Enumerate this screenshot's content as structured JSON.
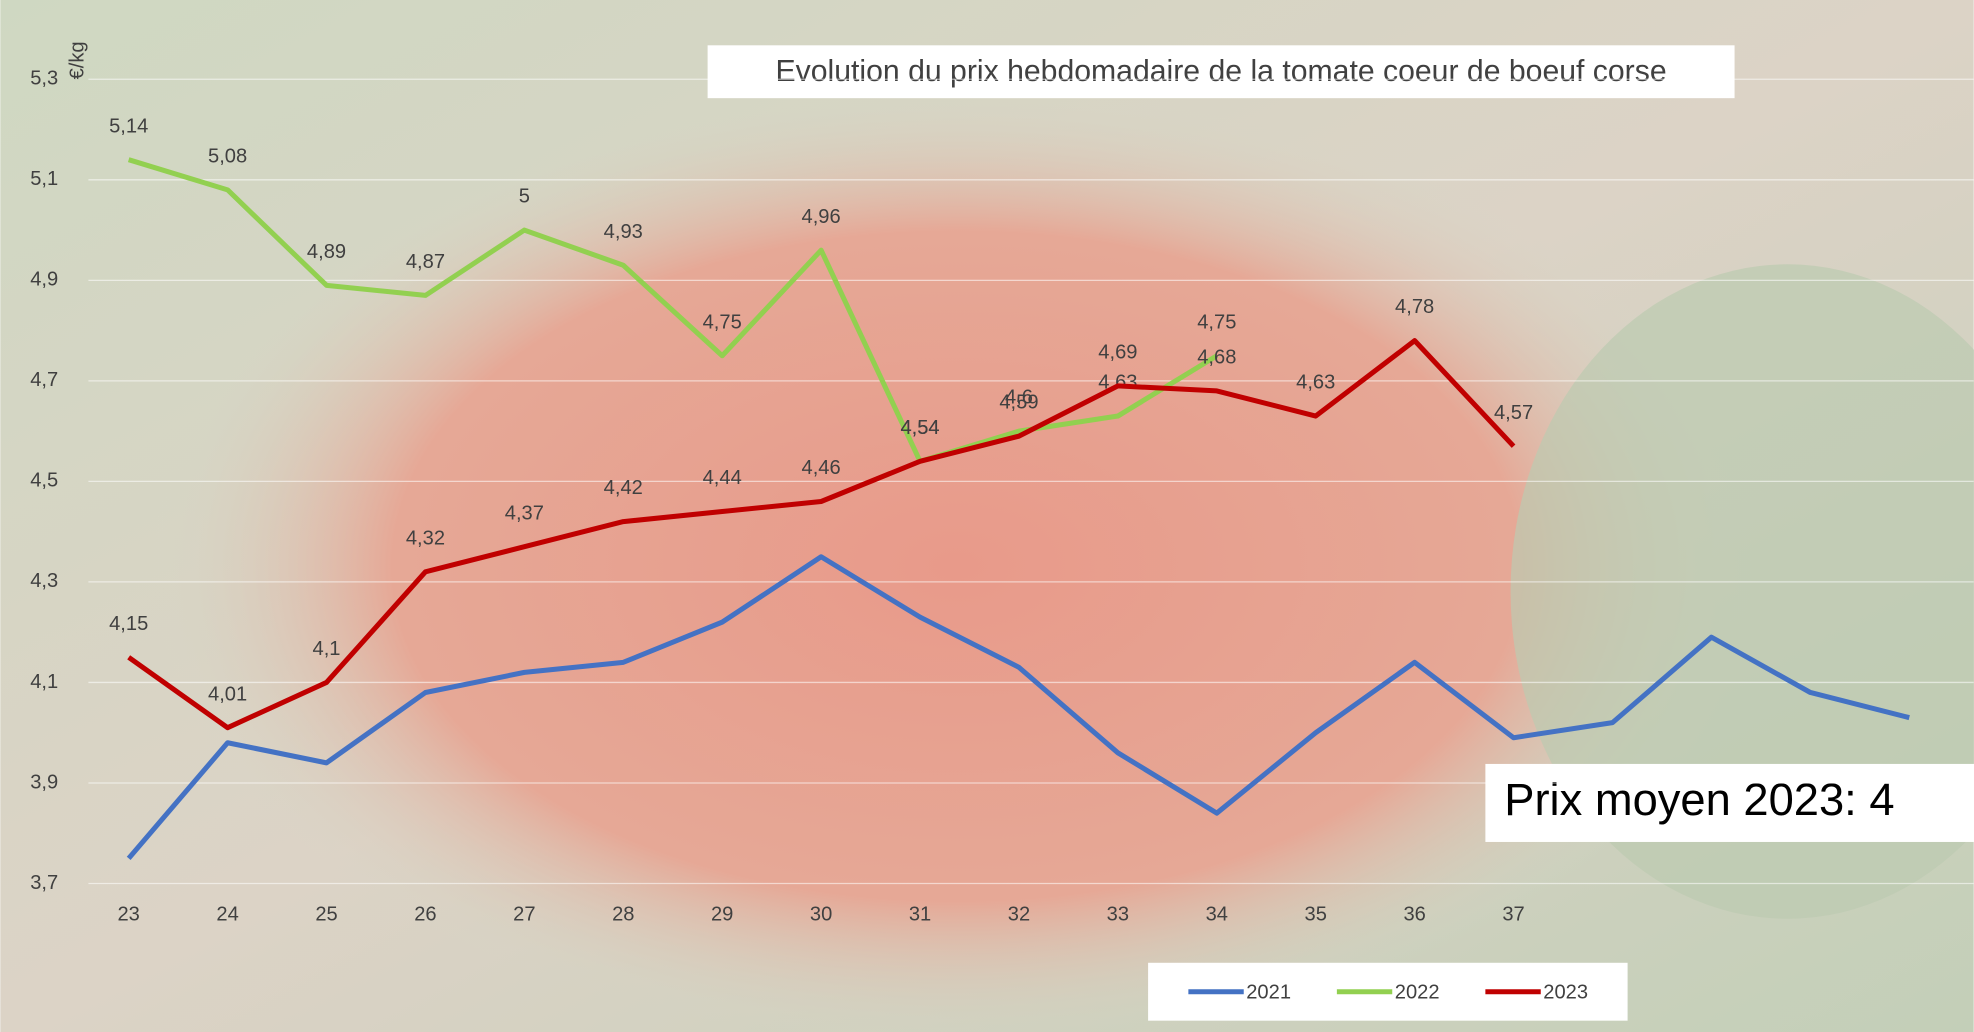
{
  "chart_data": {
    "type": "line",
    "title": "Evolution du prix hebdomadaire de la tomate coeur de boeuf corse",
    "y_label": "€/kg",
    "annotation": "Prix moyen 2023: 4",
    "categories": [
      "23",
      "24",
      "25",
      "26",
      "27",
      "28",
      "29",
      "30",
      "31",
      "32",
      "33",
      "34",
      "35",
      "36",
      "37",
      null,
      null,
      null,
      null
    ],
    "series": [
      {
        "name": "2021",
        "color": "#4472c4",
        "values": [
          3.75,
          3.98,
          3.94,
          4.08,
          4.12,
          4.14,
          4.22,
          4.35,
          4.23,
          4.13,
          3.96,
          3.84,
          4.0,
          4.14,
          3.99,
          4.02,
          4.19,
          4.08,
          4.03
        ]
      },
      {
        "name": "2022",
        "color": "#92d050",
        "values": [
          5.14,
          5.08,
          4.89,
          4.87,
          5,
          4.93,
          4.75,
          4.96,
          4.54,
          4.6,
          4.63,
          4.75,
          null,
          null,
          null,
          null,
          null,
          null,
          null
        ],
        "value_labels": [
          "5,14",
          "5,08",
          "4,89",
          "4,87",
          "5",
          "4,93",
          "4,75",
          "4,96",
          "4,54",
          "4,6",
          "4,63",
          "4,75",
          null,
          null,
          null,
          null,
          null,
          null,
          null
        ]
      },
      {
        "name": "2023",
        "color": "#c00000",
        "values": [
          4.15,
          4.01,
          4.1,
          4.32,
          4.37,
          4.42,
          4.44,
          4.46,
          4.54,
          4.59,
          4.69,
          4.68,
          4.63,
          4.78,
          4.57,
          null,
          null,
          null,
          null
        ],
        "value_labels": [
          "4,15",
          "4,01",
          "4,1",
          "4,32",
          "4,37",
          "4,42",
          "4,44",
          "4,46",
          "4,54",
          "4,59",
          "4,69",
          "4,68",
          "4,63",
          "4,78",
          "4,57",
          null,
          null,
          null,
          null
        ]
      }
    ],
    "ylim": [
      3.7,
      5.3
    ],
    "yticks": [
      {
        "value": 3.7,
        "label": "3,7"
      },
      {
        "value": 3.9,
        "label": "3,9"
      },
      {
        "value": 4.1,
        "label": "4,1"
      },
      {
        "value": 4.3,
        "label": "4,3"
      },
      {
        "value": 4.5,
        "label": "4,5"
      },
      {
        "value": 4.7,
        "label": "4,7"
      },
      {
        "value": 4.9,
        "label": "4,9"
      },
      {
        "value": 5.1,
        "label": "5,1"
      },
      {
        "value": 5.3,
        "label": "5,3"
      }
    ],
    "grid": true,
    "legend": "bottom"
  }
}
